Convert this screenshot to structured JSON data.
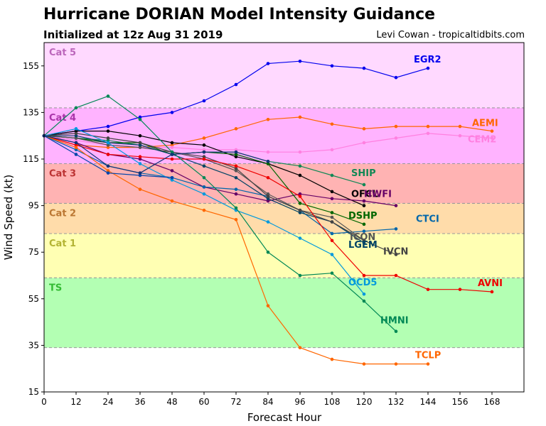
{
  "title": "Hurricane DORIAN Model Intensity Guidance",
  "subtitle": "Initialized at 12z Aug 31 2019",
  "credit": "Levi Cowan - tropicaltidbits.com",
  "chart_data": {
    "type": "line",
    "xlabel": "Forecast Hour",
    "ylabel": "Wind Speed (kt)",
    "xlim": [
      0,
      180
    ],
    "ylim": [
      15,
      165
    ],
    "x_ticks": [
      0,
      12,
      24,
      36,
      48,
      60,
      72,
      84,
      96,
      108,
      120,
      132,
      144,
      156,
      168
    ],
    "y_ticks": [
      15,
      35,
      55,
      75,
      95,
      115,
      135,
      155
    ],
    "grid": false,
    "categories_bands": [
      {
        "label": "TS",
        "from": 34,
        "to": 64,
        "color": "#b3ffb3",
        "label_color": "#33bb33"
      },
      {
        "label": "Cat 1",
        "from": 64,
        "to": 83,
        "color": "#ffffb3",
        "label_color": "#b3b333"
      },
      {
        "label": "Cat 2",
        "from": 83,
        "to": 96,
        "color": "#ffdcaa",
        "label_color": "#bb7733"
      },
      {
        "label": "Cat 3",
        "from": 96,
        "to": 113,
        "color": "#ffb3b3",
        "label_color": "#bb3333"
      },
      {
        "label": "Cat 4",
        "from": 113,
        "to": 137,
        "color": "#ffb3ff",
        "label_color": "#aa33aa"
      },
      {
        "label": "Cat 5",
        "from": 137,
        "to": 165,
        "color": "#ffd9ff",
        "label_color": "#bb66bb"
      }
    ],
    "series": [
      {
        "name": "EGR2",
        "color": "#0000ee",
        "x": [
          0,
          12,
          24,
          36,
          48,
          60,
          72,
          84,
          96,
          108,
          120,
          132,
          144
        ],
        "y": [
          125,
          127,
          129,
          133,
          135,
          140,
          147,
          156,
          157,
          155,
          154,
          150,
          154
        ]
      },
      {
        "name": "AEMI",
        "color": "#ff6600",
        "x": [
          0,
          12,
          24,
          36,
          48,
          60,
          72,
          84,
          96,
          108,
          120,
          132,
          144,
          156,
          168
        ],
        "y": [
          125,
          121,
          120,
          120,
          121,
          124,
          128,
          132,
          133,
          130,
          128,
          129,
          129,
          129,
          127
        ]
      },
      {
        "name": "CEM2",
        "color": "#ff80e0",
        "x": [
          0,
          12,
          24,
          36,
          48,
          60,
          72,
          84,
          96,
          108,
          120,
          132,
          144,
          156,
          168
        ],
        "y": [
          125,
          123,
          121,
          120,
          120,
          119,
          119,
          118,
          118,
          119,
          122,
          124,
          126,
          125,
          124
        ]
      },
      {
        "name": "SHIP",
        "color": "#118855",
        "x": [
          0,
          12,
          24,
          36,
          48,
          60,
          72,
          84,
          96,
          108,
          120
        ],
        "y": [
          125,
          124,
          123,
          121,
          117,
          118,
          118,
          114,
          112,
          108,
          104
        ]
      },
      {
        "name": "OFCL",
        "color": "#000000",
        "x": [
          0,
          12,
          24,
          36,
          48,
          60,
          72,
          84,
          96,
          108,
          120
        ],
        "y": [
          125,
          127,
          127,
          125,
          122,
          121,
          116,
          113,
          108,
          101,
          95
        ]
      },
      {
        "name": "HWFI",
        "color": "#660066",
        "x": [
          0,
          12,
          24,
          36,
          48,
          60,
          72,
          84,
          96,
          108,
          120,
          132
        ],
        "y": [
          125,
          122,
          117,
          115,
          110,
          103,
          100,
          97,
          100,
          98,
          97,
          95
        ]
      },
      {
        "name": "DSHP",
        "color": "#006600",
        "x": [
          0,
          12,
          24,
          36,
          48,
          60,
          72,
          84,
          96,
          108,
          120
        ],
        "y": [
          125,
          124,
          122,
          122,
          117,
          118,
          117,
          113,
          96,
          92,
          87
        ]
      },
      {
        "name": "CTCI",
        "color": "#0066aa",
        "x": [
          0,
          12,
          24,
          36,
          48,
          60,
          72,
          84,
          96,
          108,
          120,
          132
        ],
        "y": [
          125,
          119,
          112,
          109,
          107,
          103,
          102,
          99,
          93,
          83,
          84,
          85
        ]
      },
      {
        "name": "ICON",
        "color": "#555555",
        "x": [
          0,
          12,
          24,
          36,
          48,
          60,
          72,
          84,
          96,
          108,
          120
        ],
        "y": [
          125,
          124,
          121,
          120,
          118,
          115,
          110,
          100,
          93,
          90,
          80
        ]
      },
      {
        "name": "LGEM",
        "color": "#004466",
        "x": [
          0,
          12,
          24,
          36,
          48,
          60,
          72,
          84,
          96,
          108,
          120
        ],
        "y": [
          125,
          125,
          122,
          121,
          117,
          112,
          107,
          98,
          92,
          88,
          79
        ]
      },
      {
        "name": "IVCN",
        "color": "#444444",
        "x": [
          0,
          12,
          24,
          36,
          48,
          60,
          72,
          84,
          96,
          108,
          120,
          132
        ],
        "y": [
          125,
          126,
          124,
          122,
          118,
          116,
          111,
          99,
          93,
          88,
          80,
          74
        ]
      },
      {
        "name": "AVNI",
        "color": "#ee0000",
        "x": [
          0,
          12,
          24,
          36,
          48,
          60,
          72,
          84,
          96,
          108,
          120,
          132,
          144,
          156,
          168
        ],
        "y": [
          125,
          121,
          117,
          116,
          115,
          115,
          112,
          107,
          99,
          80,
          65,
          65,
          59,
          59,
          58
        ]
      },
      {
        "name": "OCD5",
        "color": "#0099dd",
        "x": [
          0,
          12,
          24,
          36,
          48,
          60,
          72,
          84,
          96,
          108,
          120
        ],
        "y": [
          125,
          128,
          122,
          113,
          106,
          100,
          93,
          88,
          81,
          74,
          57
        ]
      },
      {
        "name": "HMNI",
        "color": "#008855",
        "x": [
          0,
          12,
          24,
          36,
          48,
          60,
          72,
          84,
          96,
          108,
          120,
          132
        ],
        "y": [
          125,
          137,
          142,
          132,
          118,
          107,
          94,
          75,
          65,
          66,
          54,
          41
        ]
      },
      {
        "name": "TCLP",
        "color": "#ff6600",
        "x": [
          0,
          12,
          24,
          36,
          48,
          60,
          72,
          84,
          96,
          108,
          120,
          132,
          144
        ],
        "y": [
          125,
          120,
          110,
          102,
          97,
          93,
          89,
          52,
          34,
          29,
          27,
          27,
          27
        ]
      },
      {
        "name": "",
        "color": "#0044aa",
        "x": [
          0,
          12,
          24,
          36,
          48
        ],
        "y": [
          125,
          117,
          109,
          108,
          107
        ]
      },
      {
        "name": "",
        "color": "#113377",
        "x": [
          0,
          12,
          24,
          36,
          48,
          60,
          72,
          84
        ],
        "y": [
          125,
          122,
          112,
          109,
          117,
          118,
          118,
          114
        ]
      }
    ]
  }
}
